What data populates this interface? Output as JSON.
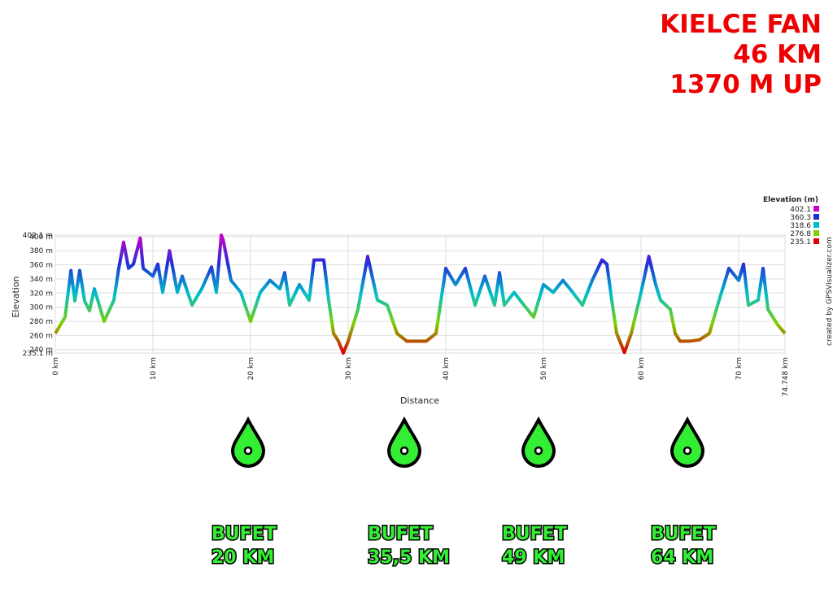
{
  "header": {
    "lines": [
      "KIELCE FAN",
      "46 KM",
      "1370 M UP"
    ]
  },
  "credit": "created by GPSVisualizer.com",
  "aid_stations": [
    {
      "label": "BUFET",
      "distance": "20 KM"
    },
    {
      "label": "BUFET",
      "distance": "35,5 KM"
    },
    {
      "label": "BUFET",
      "distance": "49 KM"
    },
    {
      "label": "BUFET",
      "distance": "64 KM"
    }
  ],
  "chart_data": {
    "type": "line",
    "x_label": "Distance",
    "y_label": "Elevation",
    "legend_title": "Elevation (m)",
    "color_scale": [
      {
        "value": 402.1,
        "color": "#cc00cc"
      },
      {
        "value": 360.3,
        "color": "#1f2fd8"
      },
      {
        "value": 318.6,
        "color": "#00c0c8"
      },
      {
        "value": 276.8,
        "color": "#7fd000"
      },
      {
        "value": 235.1,
        "color": "#dd0000"
      }
    ],
    "xlim": [
      0,
      74.748
    ],
    "ylim": [
      235.1,
      402.1
    ],
    "xticks": [
      {
        "value": 0,
        "label": "0 km"
      },
      {
        "value": 10,
        "label": "10 km"
      },
      {
        "value": 20,
        "label": "20 km"
      },
      {
        "value": 30,
        "label": "30 km"
      },
      {
        "value": 40,
        "label": "40 km"
      },
      {
        "value": 50,
        "label": "50 km"
      },
      {
        "value": 60,
        "label": "60 km"
      },
      {
        "value": 70,
        "label": "70 km"
      },
      {
        "value": 74.748,
        "label": "74.748 km"
      }
    ],
    "yticks": [
      {
        "value": 235.1,
        "label": "235.1 m"
      },
      {
        "value": 240,
        "label": "240 m"
      },
      {
        "value": 260,
        "label": "260 m"
      },
      {
        "value": 280,
        "label": "280 m"
      },
      {
        "value": 300,
        "label": "300 m"
      },
      {
        "value": 320,
        "label": "320 m"
      },
      {
        "value": 340,
        "label": "340 m"
      },
      {
        "value": 360,
        "label": "360 m"
      },
      {
        "value": 380,
        "label": "380 m"
      },
      {
        "value": 400,
        "label": "400 m"
      },
      {
        "value": 402.1,
        "label": "402.1 m"
      }
    ],
    "grid": true,
    "x": [
      0,
      1,
      1.6,
      2,
      2.5,
      3,
      3.5,
      4,
      5,
      6,
      6.5,
      7,
      7.5,
      8,
      8.7,
      9,
      10,
      10.5,
      11,
      11.7,
      12.5,
      13,
      14,
      15,
      16,
      16.5,
      17,
      17.2,
      18,
      19,
      20,
      21,
      22,
      23,
      23.5,
      24,
      25,
      26,
      26.5,
      27.5,
      28,
      28.5,
      29,
      29.5,
      30,
      31,
      32,
      33,
      34,
      35,
      36,
      37,
      38,
      39,
      40,
      41,
      42,
      43,
      44,
      45,
      45.5,
      46,
      47,
      48,
      49,
      50,
      51,
      52,
      53,
      54,
      55,
      56,
      56.5,
      57,
      57.5,
      58.3,
      59,
      60,
      60.8,
      61.5,
      62,
      63,
      63.5,
      64,
      65,
      66,
      67,
      68,
      69,
      70,
      70.5,
      71,
      72,
      72.5,
      73,
      74,
      74.748
    ],
    "values": [
      263,
      286,
      352,
      309,
      352,
      309,
      295,
      326,
      280,
      310,
      355,
      392,
      355,
      361,
      398,
      355,
      344,
      361,
      321,
      380,
      321,
      344,
      303,
      326,
      357,
      321,
      402.1,
      395,
      338,
      321,
      280,
      321,
      338,
      326,
      349,
      303,
      332,
      310,
      367,
      367,
      310,
      263,
      252,
      235.1,
      252,
      297,
      372,
      310,
      303,
      263,
      252,
      252,
      252,
      263,
      355,
      332,
      355,
      303,
      344,
      303,
      349,
      303,
      321,
      303,
      286,
      332,
      321,
      338,
      321,
      303,
      338,
      367,
      361,
      310,
      263,
      236,
      263,
      321,
      372,
      332,
      310,
      297,
      263,
      252,
      252,
      254,
      263,
      310,
      355,
      338,
      361,
      303,
      310,
      355,
      297,
      275,
      263
    ]
  }
}
